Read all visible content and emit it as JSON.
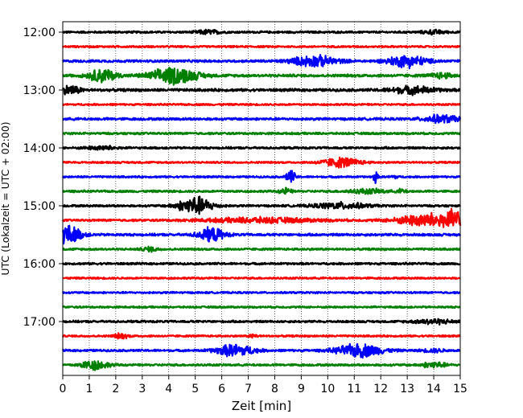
{
  "chart_data": {
    "type": "line",
    "title": "",
    "xlabel": "Zeit  [min]",
    "ylabel": "UTC (Lokalzeit = UTC + 02:00)",
    "xlim": [
      0,
      15
    ],
    "x_ticks": [
      "0",
      "1",
      "2",
      "3",
      "4",
      "5",
      "6",
      "7",
      "8",
      "9",
      "10",
      "11",
      "12",
      "13",
      "14",
      "15"
    ],
    "y_tick_labels": [
      "12:00",
      "13:00",
      "14:00",
      "15:00",
      "16:00",
      "17:00"
    ],
    "grid": "vertical dotted at each minute",
    "trace_colors": [
      "#000000",
      "#ff0000",
      "#0000ff",
      "#008000"
    ],
    "traces": [
      {
        "start": "12:00",
        "color": "#000000",
        "base_amplitude": 0.035,
        "bursts": [
          [
            5.5,
            0.3,
            0.07
          ],
          [
            14.0,
            0.3,
            0.06
          ]
        ]
      },
      {
        "start": "12:15",
        "color": "#ff0000",
        "base_amplitude": 0.03,
        "bursts": []
      },
      {
        "start": "12:30",
        "color": "#0000ff",
        "base_amplitude": 0.04,
        "bursts": [
          [
            9.5,
            0.6,
            0.18
          ],
          [
            13.0,
            0.5,
            0.2
          ]
        ]
      },
      {
        "start": "12:45",
        "color": "#008000",
        "base_amplitude": 0.045,
        "bursts": [
          [
            1.5,
            0.35,
            0.22
          ],
          [
            4.2,
            0.6,
            0.28
          ],
          [
            14.3,
            0.3,
            0.08
          ]
        ]
      },
      {
        "start": "13:00",
        "color": "#000000",
        "base_amplitude": 0.045,
        "bursts": [
          [
            0.3,
            0.25,
            0.15
          ],
          [
            13.2,
            0.6,
            0.12
          ]
        ]
      },
      {
        "start": "13:15",
        "color": "#ff0000",
        "base_amplitude": 0.03,
        "bursts": []
      },
      {
        "start": "13:30",
        "color": "#0000ff",
        "base_amplitude": 0.04,
        "bursts": [
          [
            14.3,
            0.5,
            0.12
          ]
        ]
      },
      {
        "start": "13:45",
        "color": "#008000",
        "base_amplitude": 0.035,
        "bursts": []
      },
      {
        "start": "14:00",
        "color": "#000000",
        "base_amplitude": 0.035,
        "bursts": [
          [
            1.5,
            0.4,
            0.06
          ]
        ]
      },
      {
        "start": "14:15",
        "color": "#ff0000",
        "base_amplitude": 0.03,
        "bursts": [
          [
            10.5,
            0.5,
            0.16
          ]
        ]
      },
      {
        "start": "14:30",
        "color": "#0000ff",
        "base_amplitude": 0.03,
        "bursts": [
          [
            8.6,
            0.12,
            0.22
          ],
          [
            11.8,
            0.05,
            0.25
          ],
          [
            12.5,
            0.1,
            0.06
          ]
        ]
      },
      {
        "start": "14:45",
        "color": "#008000",
        "base_amplitude": 0.035,
        "bursts": [
          [
            8.4,
            0.15,
            0.1
          ],
          [
            11.5,
            0.5,
            0.07
          ],
          [
            12.8,
            0.1,
            0.08
          ]
        ]
      },
      {
        "start": "15:00",
        "color": "#000000",
        "base_amplitude": 0.035,
        "bursts": [
          [
            5.0,
            0.45,
            0.3
          ],
          [
            10.5,
            0.7,
            0.1
          ]
        ]
      },
      {
        "start": "15:15",
        "color": "#ff0000",
        "base_amplitude": 0.035,
        "bursts": [
          [
            7.5,
            1.5,
            0.08
          ],
          [
            13.8,
            0.8,
            0.22
          ],
          [
            15.0,
            0.4,
            0.3
          ]
        ]
      },
      {
        "start": "15:30",
        "color": "#0000ff",
        "base_amplitude": 0.04,
        "bursts": [
          [
            0.2,
            0.35,
            0.3
          ],
          [
            5.6,
            0.35,
            0.22
          ]
        ]
      },
      {
        "start": "15:45",
        "color": "#008000",
        "base_amplitude": 0.035,
        "bursts": [
          [
            3.3,
            0.2,
            0.07
          ]
        ]
      },
      {
        "start": "16:00",
        "color": "#000000",
        "base_amplitude": 0.035,
        "bursts": []
      },
      {
        "start": "16:15",
        "color": "#ff0000",
        "base_amplitude": 0.03,
        "bursts": []
      },
      {
        "start": "16:30",
        "color": "#0000ff",
        "base_amplitude": 0.03,
        "bursts": []
      },
      {
        "start": "16:45",
        "color": "#008000",
        "base_amplitude": 0.03,
        "bursts": []
      },
      {
        "start": "17:00",
        "color": "#000000",
        "base_amplitude": 0.035,
        "bursts": [
          [
            14.0,
            0.5,
            0.08
          ]
        ]
      },
      {
        "start": "17:15",
        "color": "#ff0000",
        "base_amplitude": 0.03,
        "bursts": [
          [
            2.2,
            0.2,
            0.08
          ],
          [
            7.2,
            0.1,
            0.07
          ]
        ]
      },
      {
        "start": "17:30",
        "color": "#0000ff",
        "base_amplitude": 0.035,
        "bursts": [
          [
            6.5,
            0.5,
            0.2
          ],
          [
            11.2,
            0.6,
            0.22
          ],
          [
            14.0,
            0.3,
            0.05
          ]
        ]
      },
      {
        "start": "17:45",
        "color": "#008000",
        "base_amplitude": 0.035,
        "bursts": [
          [
            1.2,
            0.35,
            0.16
          ],
          [
            14.0,
            0.3,
            0.1
          ]
        ]
      }
    ]
  }
}
